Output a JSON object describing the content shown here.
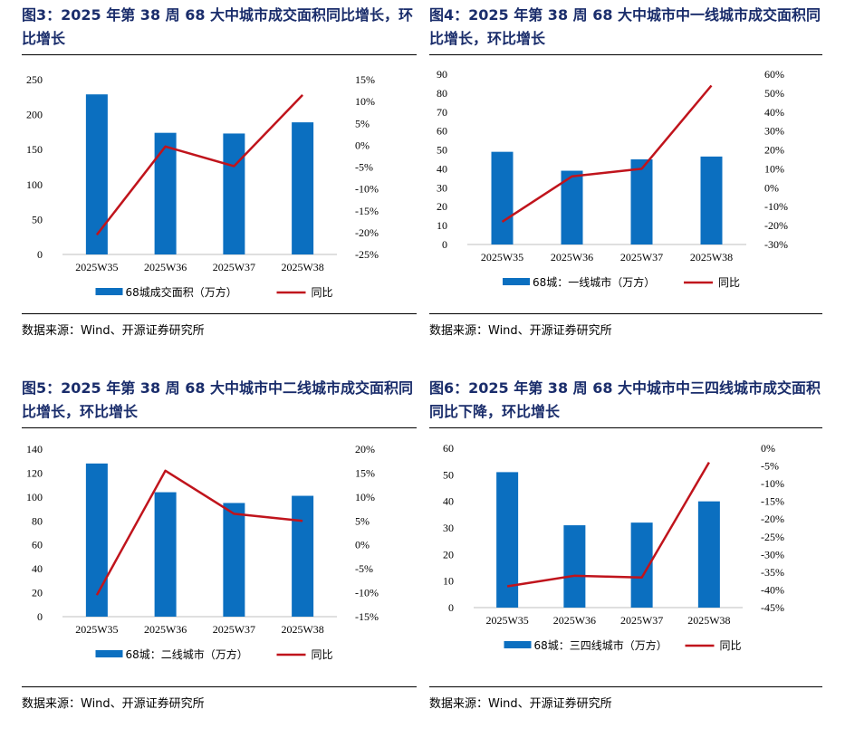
{
  "charts": [
    {
      "title": "图3：2025 年第 38 周 68 大中城市成交面积同比增长，环比增长",
      "source": "数据来源：Wind、开源证券研究所",
      "chart_data": {
        "type": "bar",
        "categories": [
          "2025W35",
          "2025W36",
          "2025W37",
          "2025W38"
        ],
        "series": [
          {
            "name": "68城成交面积（万方）",
            "type": "bar",
            "axis": "left",
            "values": [
              229,
              174,
              173,
              189
            ]
          },
          {
            "name": "同比",
            "type": "line",
            "axis": "right",
            "values": [
              -20.5,
              -0.3,
              -4.8,
              11.5
            ]
          }
        ],
        "left_ticks": [
          "0",
          "50",
          "100",
          "150",
          "200",
          "250"
        ],
        "right_ticks": [
          "-25%",
          "-20%",
          "-15%",
          "-10%",
          "-5%",
          "0%",
          "5%",
          "10%",
          "15%"
        ],
        "ylim_left": [
          0,
          250
        ],
        "ylim_right": [
          -25,
          15
        ]
      }
    },
    {
      "title": "图4：2025 年第 38 周 68 大中城市中一线城市成交面积同比增长，环比增长",
      "source": "数据来源：Wind、开源证券研究所",
      "chart_data": {
        "type": "bar",
        "categories": [
          "2025W35",
          "2025W36",
          "2025W37",
          "2025W38"
        ],
        "series": [
          {
            "name": "68城：一线城市（万方）",
            "type": "bar",
            "axis": "left",
            "values": [
              49,
              39,
              45,
              46.5
            ]
          },
          {
            "name": "同比",
            "type": "line",
            "axis": "right",
            "values": [
              -18,
              6,
              10,
              54
            ]
          }
        ],
        "left_ticks": [
          "0",
          "10",
          "20",
          "30",
          "40",
          "50",
          "60",
          "70",
          "80",
          "90"
        ],
        "right_ticks": [
          "-30%",
          "-20%",
          "-10%",
          "0%",
          "10%",
          "20%",
          "30%",
          "40%",
          "50%",
          "60%"
        ],
        "ylim_left": [
          0,
          90
        ],
        "ylim_right": [
          -30,
          60
        ]
      }
    },
    {
      "title": "图5：2025 年第 38 周 68 大中城市中二线城市成交面积同比增长，环比增长",
      "source": "数据来源：Wind、开源证券研究所",
      "chart_data": {
        "type": "bar",
        "categories": [
          "2025W35",
          "2025W36",
          "2025W37",
          "2025W38"
        ],
        "series": [
          {
            "name": "68城：二线城市（万方）",
            "type": "bar",
            "axis": "left",
            "values": [
              128,
              104,
              95,
              101
            ]
          },
          {
            "name": "同比",
            "type": "line",
            "axis": "right",
            "values": [
              -10.5,
              15.5,
              6.5,
              5
            ]
          }
        ],
        "left_ticks": [
          "0",
          "20",
          "40",
          "60",
          "80",
          "100",
          "120",
          "140"
        ],
        "right_ticks": [
          "-15%",
          "-10%",
          "-5%",
          "0%",
          "5%",
          "10%",
          "15%",
          "20%"
        ],
        "ylim_left": [
          0,
          140
        ],
        "ylim_right": [
          -15,
          20
        ]
      }
    },
    {
      "title": "图6：2025 年第 38 周 68 大中城市中三四线城市成交面积同比下降，环比增长",
      "source": "数据来源：Wind、开源证券研究所",
      "chart_data": {
        "type": "bar",
        "categories": [
          "2025W35",
          "2025W36",
          "2025W37",
          "2025W38"
        ],
        "series": [
          {
            "name": "68城：三四线城市（万方）",
            "type": "bar",
            "axis": "left",
            "values": [
              51,
              31,
              32,
              40
            ]
          },
          {
            "name": "同比",
            "type": "line",
            "axis": "right",
            "values": [
              -39,
              -36,
              -36.5,
              -4
            ]
          }
        ],
        "left_ticks": [
          "0",
          "10",
          "20",
          "30",
          "40",
          "50",
          "60"
        ],
        "right_ticks": [
          "-45%",
          "-40%",
          "-35%",
          "-30%",
          "-25%",
          "-20%",
          "-15%",
          "-10%",
          "-5%",
          "0%"
        ],
        "ylim_left": [
          0,
          60
        ],
        "ylim_right": [
          -45,
          0
        ]
      }
    }
  ],
  "colors": {
    "bar": "#0b6fc0",
    "line": "#c0141c",
    "title": "#1a2d6b"
  }
}
